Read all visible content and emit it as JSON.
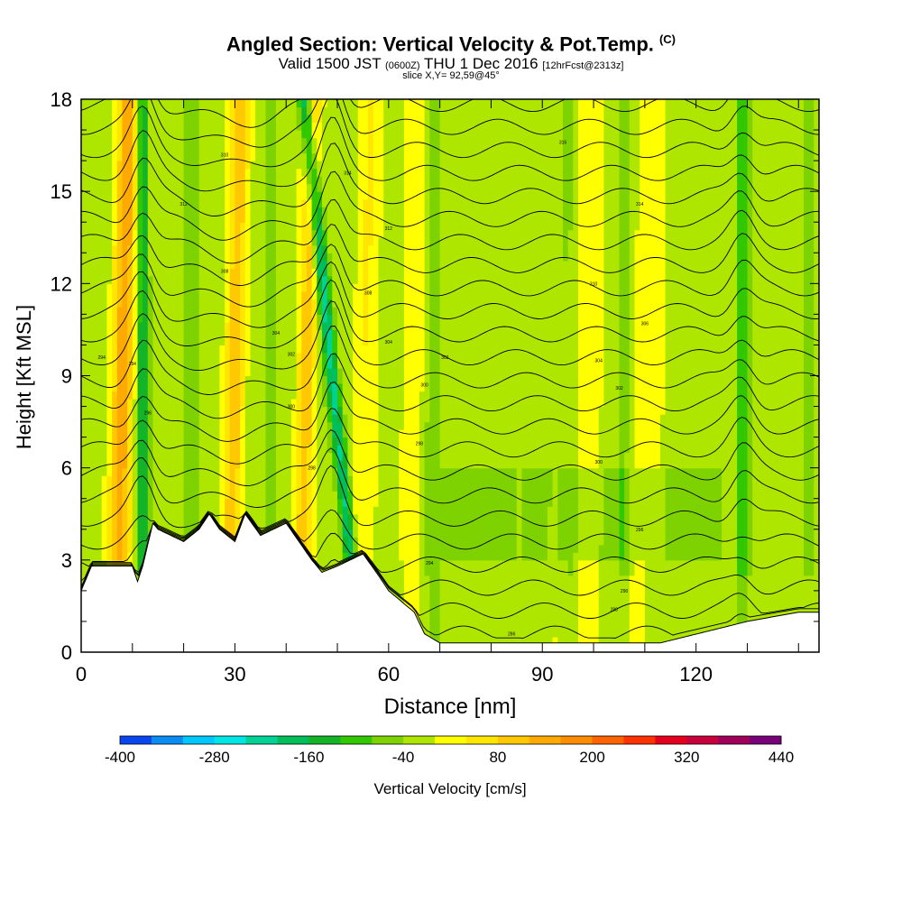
{
  "header": {
    "title": "Angled Section: Vertical Velocity & Pot.Temp.",
    "copyright": "(C)",
    "valid_prefix": "Valid 1500 JST",
    "valid_zulu": "(0600Z)",
    "valid_date": "THU 1 Dec 2016",
    "forecast": "[12hrFcst@2313z]",
    "slice": "slice X,Y= 92,59@45°"
  },
  "chart_data": {
    "type": "heatmap",
    "xlabel": "Distance [nm]",
    "ylabel": "Height [Kft MSL]",
    "xlim": [
      0,
      144
    ],
    "ylim": [
      0,
      18
    ],
    "x_ticks": [
      0,
      30,
      60,
      90,
      120
    ],
    "y_ticks": [
      0,
      3,
      6,
      9,
      12,
      15,
      18
    ],
    "colorbar": {
      "label": "Vertical Velocity [cm/s]",
      "min": -400,
      "max": 440,
      "step": 40,
      "tick_labels": [
        "-400",
        "-280",
        "-160",
        "-40",
        "80",
        "200",
        "320",
        "440"
      ],
      "colors": [
        "#0000ff",
        "#0a46f0",
        "#0a8cf5",
        "#00c8ff",
        "#00e6e6",
        "#00d296",
        "#00be5a",
        "#14b428",
        "#32c800",
        "#7dd200",
        "#afe600",
        "#ffff00",
        "#ffe600",
        "#ffc800",
        "#ffaa00",
        "#ff8c00",
        "#ff6400",
        "#ff3200",
        "#e6001e",
        "#c8003c",
        "#a0005a",
        "#780078",
        "#5a0096"
      ]
    },
    "updraft_bands_x_nm": [
      8,
      30,
      44,
      55,
      65,
      98,
      110
    ],
    "downdraft_bands_x_nm": [
      12,
      22,
      37,
      49,
      69,
      95,
      106,
      129,
      142
    ],
    "terrain_profile": {
      "x_nm": [
        0,
        2,
        10,
        11,
        12,
        13,
        14,
        15,
        20,
        23,
        25,
        27,
        30,
        32,
        35,
        40,
        45,
        47,
        50,
        55,
        58,
        60,
        65,
        67,
        70,
        100,
        113,
        130,
        140,
        144
      ],
      "height_kft": [
        2.0,
        2.8,
        2.8,
        2.3,
        2.8,
        3.5,
        4.2,
        4.0,
        3.6,
        4.0,
        4.5,
        4.0,
        3.6,
        4.5,
        3.8,
        4.2,
        3.0,
        2.6,
        2.8,
        3.2,
        2.5,
        2.0,
        1.3,
        0.6,
        0.3,
        0.3,
        0.3,
        1.0,
        1.3,
        1.3
      ]
    },
    "isentrope_labels": [
      {
        "text": "294",
        "x": 4,
        "y": 9.6
      },
      {
        "text": "294",
        "x": 10,
        "y": 9.4
      },
      {
        "text": "296",
        "x": 13,
        "y": 7.8
      },
      {
        "text": "312",
        "x": 20,
        "y": 14.6
      },
      {
        "text": "310",
        "x": 28,
        "y": 16.2
      },
      {
        "text": "308",
        "x": 28,
        "y": 12.4
      },
      {
        "text": "304",
        "x": 38,
        "y": 10.4
      },
      {
        "text": "302",
        "x": 41,
        "y": 9.7
      },
      {
        "text": "300",
        "x": 41,
        "y": 8.0
      },
      {
        "text": "298",
        "x": 45,
        "y": 6.0
      },
      {
        "text": "314",
        "x": 52,
        "y": 15.6
      },
      {
        "text": "312",
        "x": 60,
        "y": 13.8
      },
      {
        "text": "308",
        "x": 56,
        "y": 11.7
      },
      {
        "text": "304",
        "x": 60,
        "y": 10.1
      },
      {
        "text": "302",
        "x": 71,
        "y": 9.6
      },
      {
        "text": "300",
        "x": 67,
        "y": 8.7
      },
      {
        "text": "298",
        "x": 66,
        "y": 6.8
      },
      {
        "text": "294",
        "x": 68,
        "y": 2.9
      },
      {
        "text": "316",
        "x": 94,
        "y": 16.6
      },
      {
        "text": "314",
        "x": 109,
        "y": 14.6
      },
      {
        "text": "310",
        "x": 100,
        "y": 12.0
      },
      {
        "text": "306",
        "x": 110,
        "y": 10.7
      },
      {
        "text": "304",
        "x": 101,
        "y": 9.5
      },
      {
        "text": "302",
        "x": 105,
        "y": 8.6
      },
      {
        "text": "300",
        "x": 101,
        "y": 6.2
      },
      {
        "text": "296",
        "x": 109,
        "y": 4.0
      },
      {
        "text": "290",
        "x": 106,
        "y": 2.0
      },
      {
        "text": "288",
        "x": 104,
        "y": 1.4
      },
      {
        "text": "286",
        "x": 84,
        "y": 0.6
      }
    ]
  }
}
